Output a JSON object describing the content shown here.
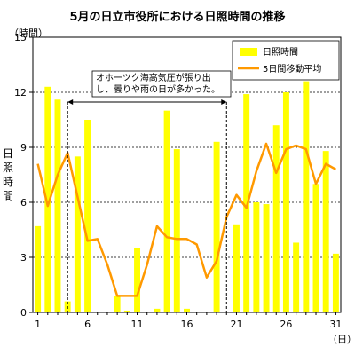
{
  "chart_data": {
    "type": "bar",
    "title": "5月の日立市役所における日照時間の推移",
    "ylabel_chars": [
      "日",
      "照",
      "時",
      "間"
    ],
    "yunit": "（時間）",
    "xunit": "（日）",
    "ylim": [
      0,
      15
    ],
    "yticks": [
      0,
      3,
      6,
      9,
      12,
      15
    ],
    "xlim": [
      0.5,
      31.5
    ],
    "xticks": [
      1,
      6,
      11,
      16,
      21,
      26,
      31
    ],
    "grid": "horizontal-dotted",
    "legend_position": "top-right",
    "x": [
      1,
      2,
      3,
      4,
      5,
      6,
      7,
      8,
      9,
      10,
      11,
      12,
      13,
      14,
      15,
      16,
      17,
      18,
      19,
      20,
      21,
      22,
      23,
      24,
      25,
      26,
      27,
      28,
      29,
      30,
      31
    ],
    "series": [
      {
        "name": "日照時間",
        "type": "bar",
        "color": "#ffff00",
        "values": [
          4.7,
          12.3,
          11.6,
          0.6,
          8.5,
          10.5,
          0.0,
          0.0,
          0.9,
          0.1,
          3.5,
          0.0,
          0.2,
          11.0,
          8.9,
          0.2,
          0.0,
          0.0,
          9.3,
          0.0,
          4.8,
          11.9,
          6.0,
          5.9,
          10.2,
          12.0,
          3.8,
          12.6,
          7.0,
          8.8,
          3.2
        ]
      },
      {
        "name": "5日間移動平均",
        "type": "line",
        "color": "#ff9900",
        "values": [
          8.1,
          5.8,
          7.5,
          8.7,
          6.3,
          3.9,
          4.0,
          2.6,
          0.9,
          0.9,
          0.9,
          2.6,
          4.7,
          4.1,
          4.0,
          4.0,
          3.7,
          1.9,
          2.8,
          5.2,
          6.4,
          5.7,
          7.7,
          9.2,
          7.6,
          8.9,
          9.1,
          8.9,
          7.0,
          8.1,
          7.8
        ]
      }
    ],
    "annotation": {
      "lines": [
        "オホーツク海高気圧が張り出",
        "し、曇りや雨の日が多かった。"
      ],
      "from_x": 4,
      "to_x": 20
    }
  }
}
